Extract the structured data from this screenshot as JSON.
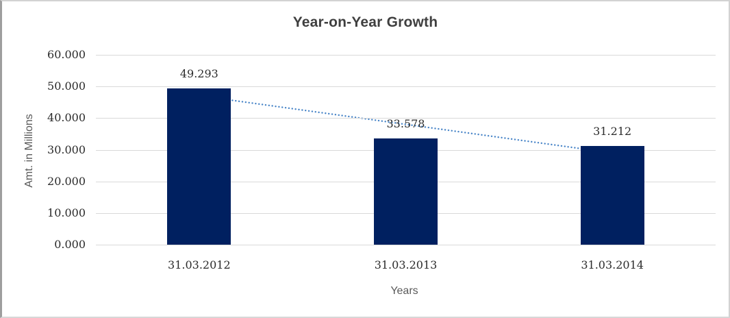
{
  "chart_data": {
    "type": "bar",
    "title": "Year-on-Year Growth",
    "categories": [
      "31.03.2012",
      "31.03.2013",
      "31.03.2014"
    ],
    "values": [
      49.293,
      33.578,
      31.212
    ],
    "value_labels": [
      "49.293",
      "33.578",
      "31.212"
    ],
    "xlabel": "Years",
    "ylabel": "Amt. in Millions",
    "ylim": [
      0,
      60
    ],
    "ytick_labels": [
      "0.000",
      "10.000",
      "20.000",
      "30.000",
      "40.000",
      "50.000",
      "60.000"
    ],
    "grid": true,
    "legend_position": "none",
    "bar_color": "#002060",
    "trendline": {
      "type": "linear",
      "style": "dotted",
      "color": "#4a86c8"
    },
    "gridline_color": "#d9d9d9",
    "title_color": "#3f3f3f",
    "label_color": "#2b2b2b",
    "axis_title_color": "#595959",
    "background_color": "#ffffff"
  }
}
